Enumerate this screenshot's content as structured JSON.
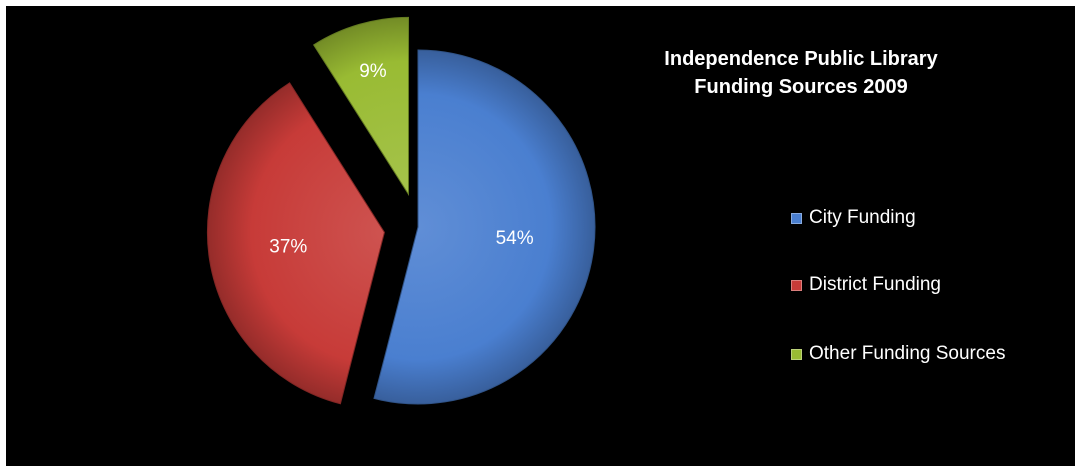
{
  "chart_data": {
    "type": "pie",
    "title_lines": [
      "Independence Public Library",
      "Funding Sources 2009"
    ],
    "slices": [
      {
        "name": "City Funding",
        "value": 54,
        "label": "54%",
        "color": "#4a7fd0"
      },
      {
        "name": "District Funding",
        "value": 37,
        "label": "37%",
        "color": "#c73b38"
      },
      {
        "name": "Other Funding Sources",
        "value": 9,
        "label": "9%",
        "color": "#99bb33"
      }
    ],
    "exploded": true,
    "legend_position": "right",
    "background": "#000000"
  }
}
